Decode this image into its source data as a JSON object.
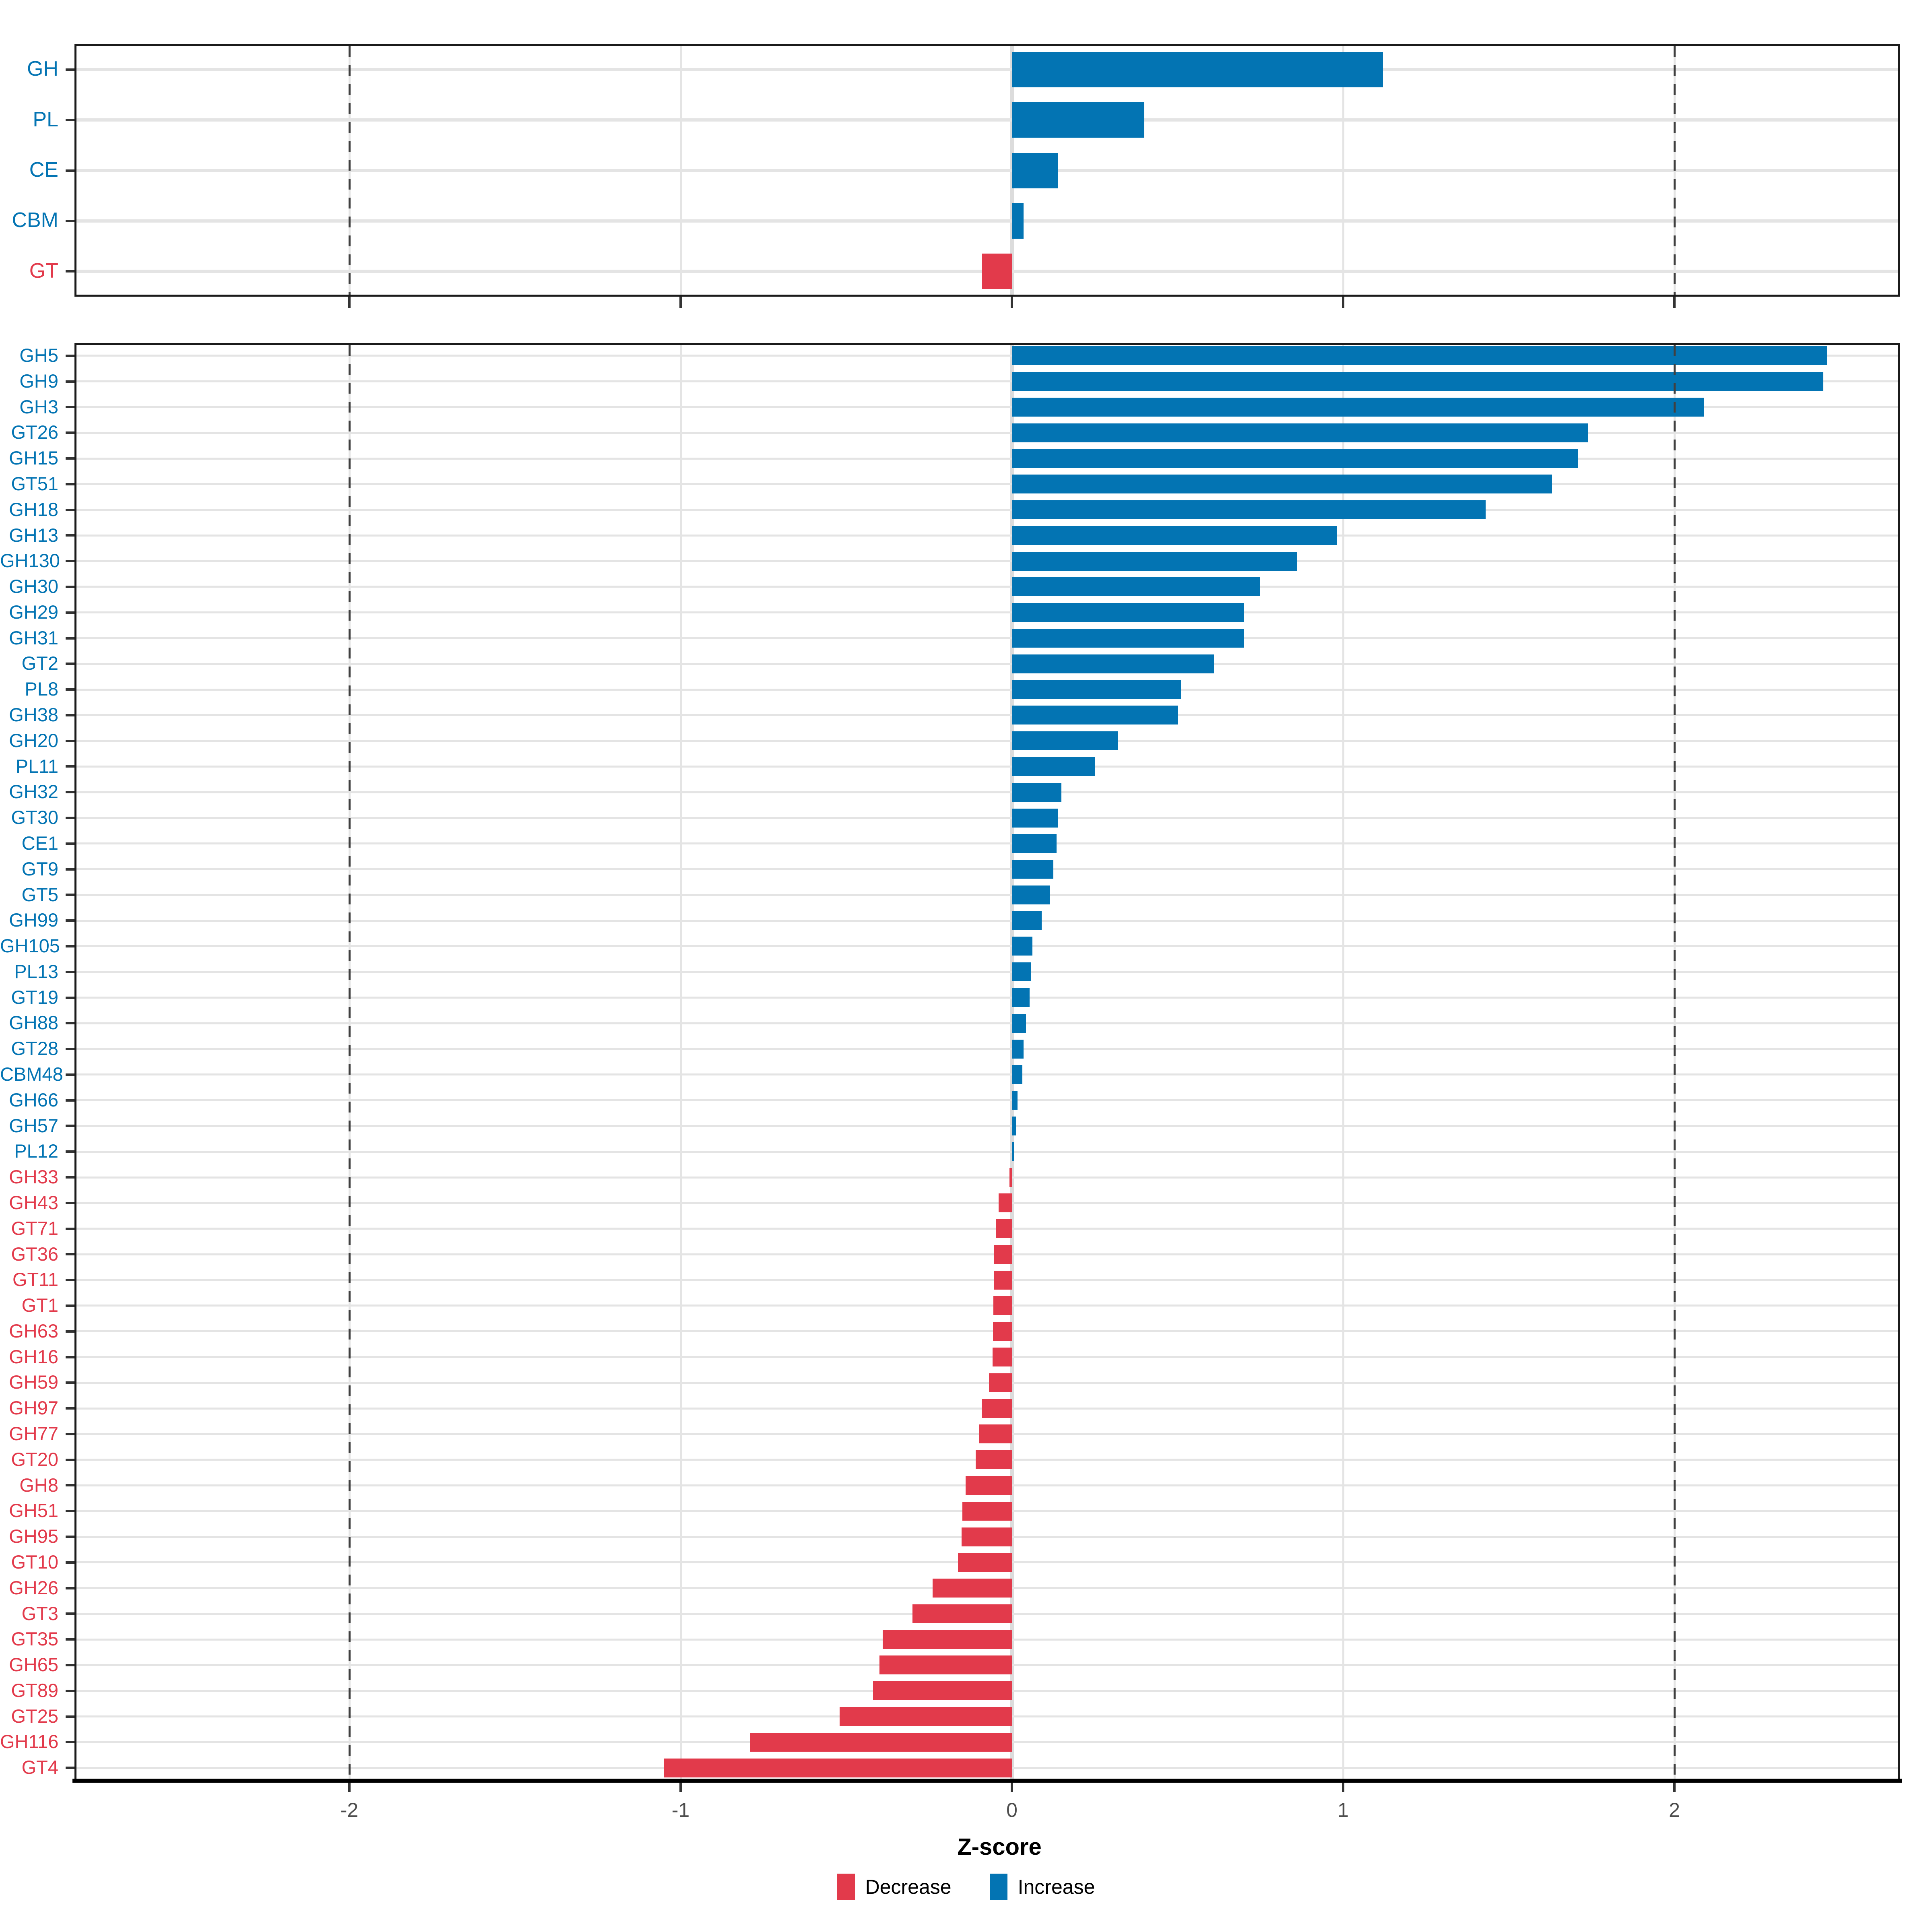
{
  "figure": {
    "background": "#ffffff"
  },
  "axis": {
    "title": "Z-score",
    "tick_labels": [
      "-2",
      "-1",
      "0",
      "1",
      "2"
    ],
    "tick_values": [
      -2,
      -1,
      0,
      1,
      2
    ]
  },
  "legend": {
    "items": [
      {
        "label": "Decrease",
        "color": "#e23a4b"
      },
      {
        "label": "Increase",
        "color": "#0374b3"
      }
    ]
  },
  "colors": {
    "increase": "#0374b3",
    "decrease": "#e23a4b",
    "gridline": "#e4e4e4",
    "zero_line": "#dcdcdc",
    "dashed_line": "#404040",
    "panel_border": "#1b1b1b",
    "tick_mark": "#333333",
    "tick_label": "#4d4d4d"
  },
  "chart_data": [
    {
      "type": "bar",
      "panel": "category-summary",
      "orientation": "horizontal",
      "title": "",
      "xlabel": "Z-score",
      "ylabel": "",
      "xlim": [
        -2.83,
        2.68
      ],
      "x_ticks": [
        -2,
        -1,
        0,
        1,
        2
      ],
      "dashed_vlines": [
        -2,
        2
      ],
      "grid": true,
      "categories": [
        "GH",
        "PL",
        "CE",
        "CBM",
        "GT"
      ],
      "values": [
        1.12,
        0.4,
        0.14,
        0.035,
        -0.09
      ]
    },
    {
      "type": "bar",
      "panel": "family-detail",
      "orientation": "horizontal",
      "title": "",
      "xlabel": "Z-score",
      "ylabel": "",
      "xlim": [
        -2.83,
        2.68
      ],
      "x_ticks": [
        -2,
        -1,
        0,
        1,
        2
      ],
      "dashed_vlines": [
        -2,
        2
      ],
      "grid": true,
      "categories": [
        "GH5",
        "GH9",
        "GH3",
        "GT26",
        "GH15",
        "GT51",
        "GH18",
        "GH13",
        "GH130",
        "GH30",
        "GH29",
        "GH31",
        "GT2",
        "PL8",
        "GH38",
        "GH20",
        "PL11",
        "GH32",
        "GT30",
        "CE1",
        "GT9",
        "GT5",
        "GH99",
        "GH105",
        "PL13",
        "GT19",
        "GH88",
        "GT28",
        "CBM48",
        "GH66",
        "GH57",
        "PL12",
        "GH33",
        "GH43",
        "GT71",
        "GT36",
        "GT11",
        "GT1",
        "GH63",
        "GH16",
        "GH59",
        "GH97",
        "GH77",
        "GT20",
        "GH8",
        "GH51",
        "GH95",
        "GT10",
        "GH26",
        "GT3",
        "GT35",
        "GH65",
        "GT89",
        "GT25",
        "GH116",
        "GT4"
      ],
      "values": [
        2.46,
        2.45,
        2.09,
        1.74,
        1.71,
        1.63,
        1.43,
        0.98,
        0.86,
        0.75,
        0.7,
        0.7,
        0.61,
        0.51,
        0.5,
        0.32,
        0.25,
        0.15,
        0.14,
        0.135,
        0.125,
        0.115,
        0.09,
        0.062,
        0.058,
        0.054,
        0.042,
        0.035,
        0.031,
        0.017,
        0.012,
        0.006,
        -0.008,
        -0.04,
        -0.048,
        -0.055,
        -0.055,
        -0.056,
        -0.057,
        -0.058,
        -0.07,
        -0.092,
        -0.1,
        -0.11,
        -0.14,
        -0.15,
        -0.152,
        -0.163,
        -0.24,
        -0.3,
        -0.39,
        -0.4,
        -0.42,
        -0.52,
        -0.79,
        -1.05
      ]
    }
  ]
}
